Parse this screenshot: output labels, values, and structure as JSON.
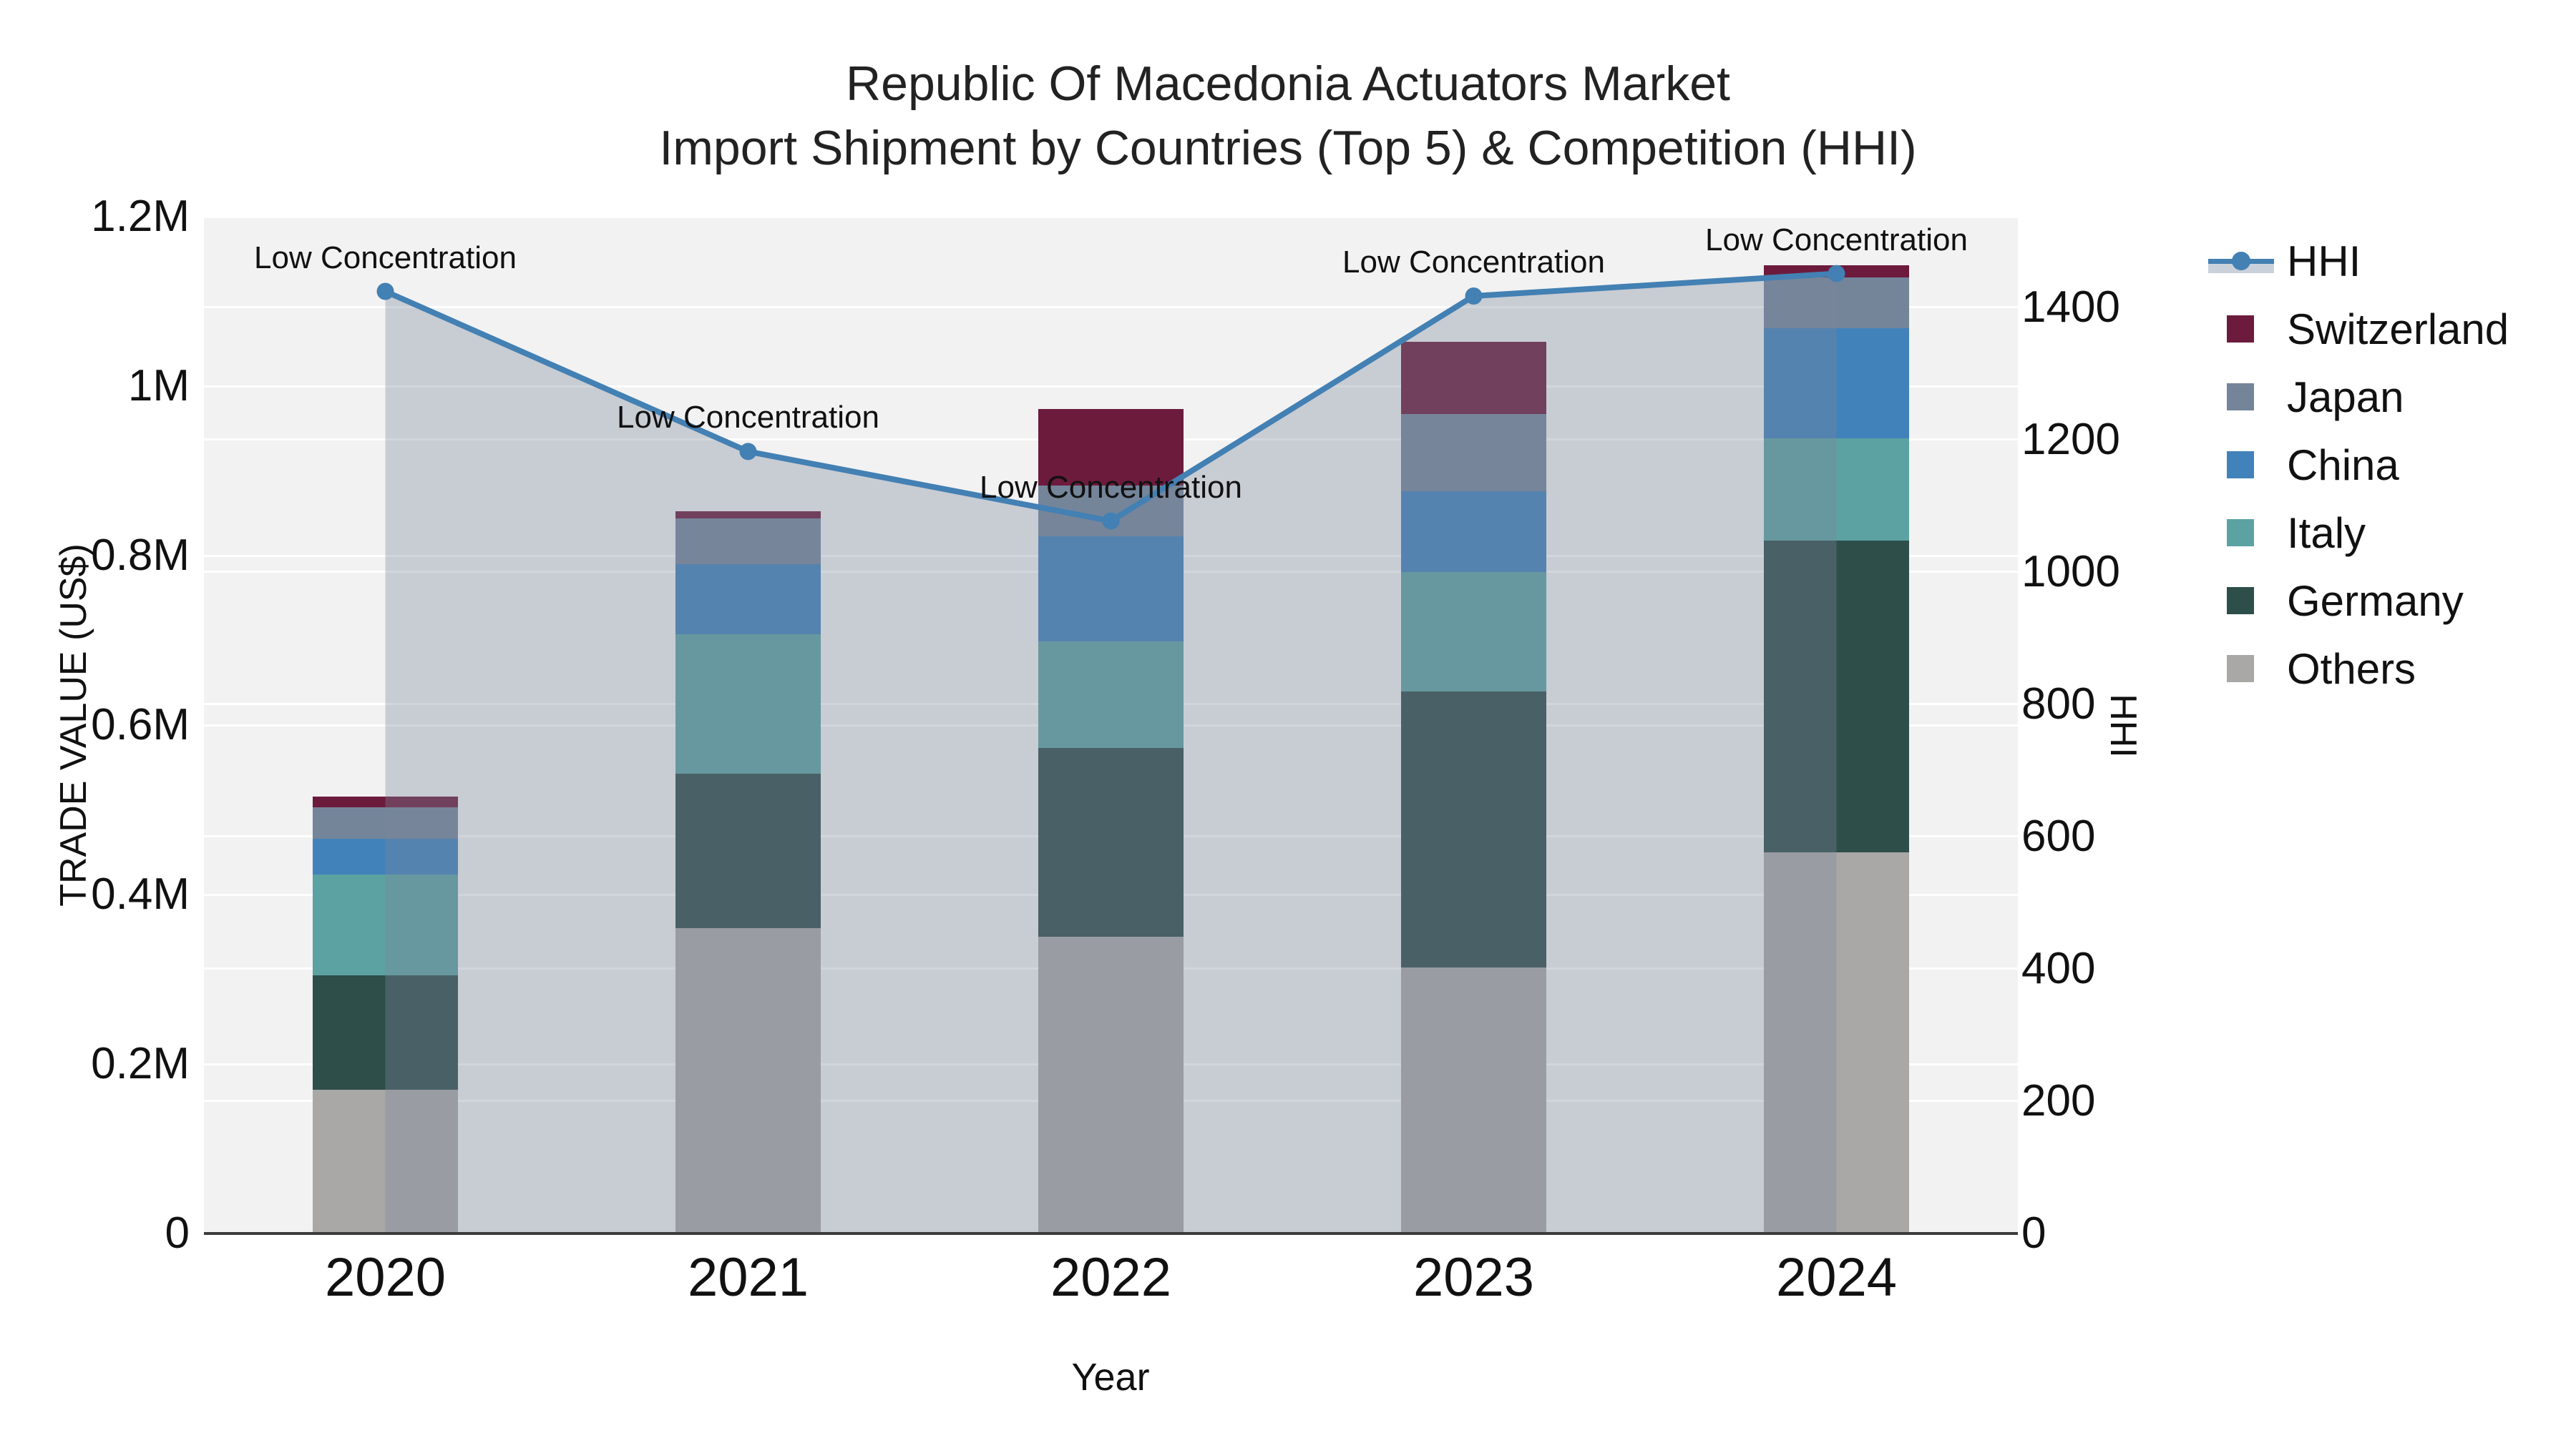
{
  "title": {
    "line1": "Republic Of Macedonia Actuators Market",
    "line2": "Import Shipment by Countries (Top 5) & Competition (HHI)"
  },
  "axes": {
    "y_left": {
      "title": "TRADE VALUE (US$)",
      "ticks": [
        {
          "label": "0",
          "value": 0
        },
        {
          "label": "0.2M",
          "value": 200000
        },
        {
          "label": "0.4M",
          "value": 400000
        },
        {
          "label": "0.6M",
          "value": 600000
        },
        {
          "label": "0.8M",
          "value": 800000
        },
        {
          "label": "1M",
          "value": 1000000
        },
        {
          "label": "1.2M",
          "value": 1200000
        }
      ]
    },
    "y_right": {
      "title": "HHI",
      "ticks": [
        {
          "label": "0",
          "value": 0
        },
        {
          "label": "200",
          "value": 200
        },
        {
          "label": "400",
          "value": 400
        },
        {
          "label": "600",
          "value": 600
        },
        {
          "label": "800",
          "value": 800
        },
        {
          "label": "1000",
          "value": 1000
        },
        {
          "label": "1200",
          "value": 1200
        },
        {
          "label": "1400",
          "value": 1400
        }
      ]
    },
    "x": {
      "title": "Year",
      "ticks": [
        "2020",
        "2021",
        "2022",
        "2023",
        "2024"
      ]
    }
  },
  "legend": [
    {
      "label": "HHI",
      "type": "line",
      "color": "#4380b3"
    },
    {
      "label": "Switzerland",
      "type": "swatch",
      "color": "#6c1b3d"
    },
    {
      "label": "Japan",
      "type": "swatch",
      "color": "#74859a"
    },
    {
      "label": "China",
      "type": "swatch",
      "color": "#4182bb"
    },
    {
      "label": "Italy",
      "type": "swatch",
      "color": "#5ca2a2"
    },
    {
      "label": "Germany",
      "type": "swatch",
      "color": "#2e4e4a"
    },
    {
      "label": "Others",
      "type": "swatch",
      "color": "#a9a8a6"
    }
  ],
  "chart_data": {
    "type": "stacked-bar+line",
    "title": "Republic Of Macedonia Actuators Market — Import Shipment by Countries (Top 5) & Competition (HHI)",
    "xlabel": "Year",
    "ylabel_left": "TRADE VALUE (US$)",
    "ylabel_right": "HHI",
    "categories": [
      "2020",
      "2021",
      "2022",
      "2023",
      "2024"
    ],
    "ylim_left": [
      0,
      1200000
    ],
    "ylim_right": [
      0,
      1537
    ],
    "grid": true,
    "legend_position": "right",
    "bar_series_bottom_to_top": [
      {
        "name": "Others",
        "color": "#a9a8a6",
        "values": [
          170000,
          360000,
          350000,
          314000,
          450000
        ]
      },
      {
        "name": "Germany",
        "color": "#2e4e4a",
        "values": [
          135000,
          183000,
          223000,
          326000,
          368000
        ]
      },
      {
        "name": "Italy",
        "color": "#5ca2a2",
        "values": [
          119000,
          164000,
          126000,
          141000,
          120000
        ]
      },
      {
        "name": "China",
        "color": "#4182bb",
        "values": [
          42000,
          83000,
          124000,
          95000,
          130000
        ]
      },
      {
        "name": "Japan",
        "color": "#74859a",
        "values": [
          37000,
          54000,
          60000,
          91000,
          60000
        ]
      },
      {
        "name": "Switzerland",
        "color": "#6c1b3d",
        "values": [
          13000,
          8000,
          90000,
          85000,
          15000
        ]
      }
    ],
    "bar_totals": [
      516000,
      852000,
      973000,
      1052000,
      1143000
    ],
    "line_series": {
      "name": "HHI",
      "axis": "right",
      "color": "#4380b3",
      "fill_color": "rgba(123,134,154,0.35)",
      "values": [
        1424,
        1182,
        1077,
        1417,
        1451
      ]
    },
    "annotations": [
      {
        "category": "2020",
        "text": "Low Concentration"
      },
      {
        "category": "2021",
        "text": "Low Concentration"
      },
      {
        "category": "2022",
        "text": "Low Concentration"
      },
      {
        "category": "2023",
        "text": "Low Concentration"
      },
      {
        "category": "2024",
        "text": "Low Concentration"
      }
    ]
  }
}
